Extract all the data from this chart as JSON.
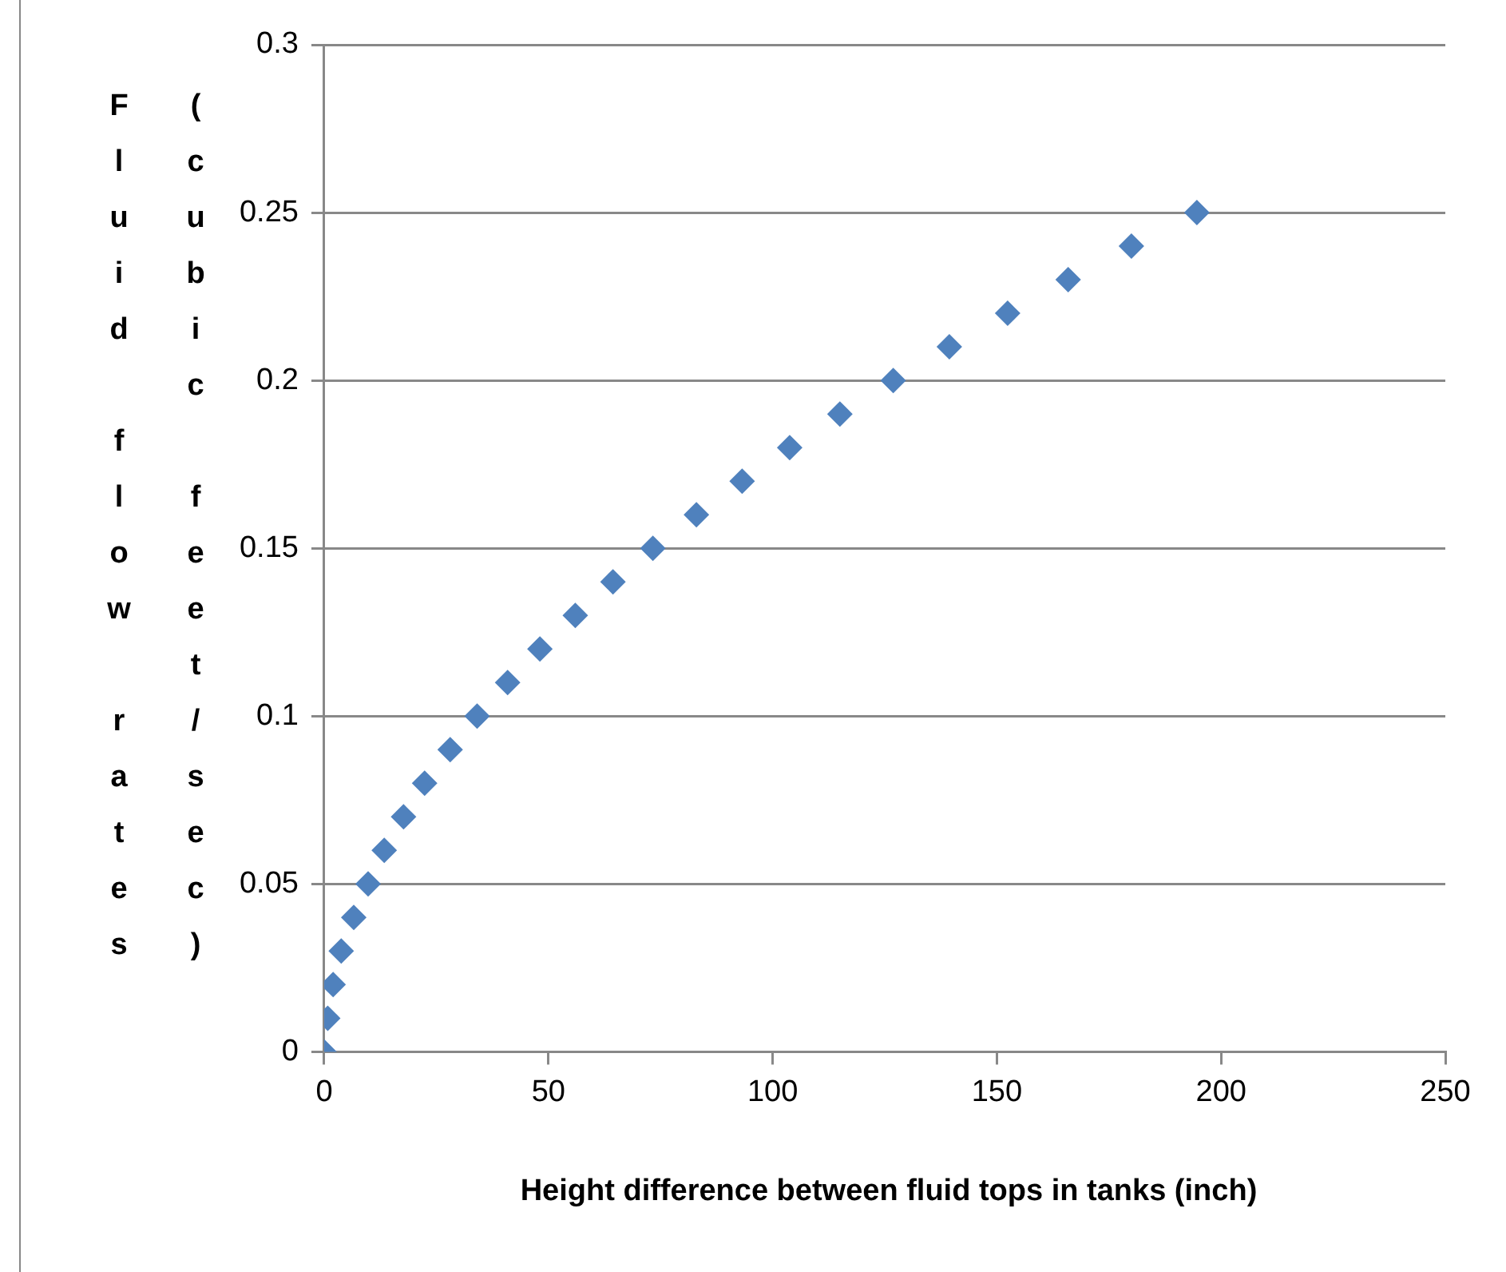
{
  "chart_data": {
    "type": "scatter",
    "xlabel": "Height difference between fluid tops in tanks (inch)",
    "ylabel": "Fluid flow rates (cubic feet/sec)",
    "x": [
      0,
      0.8,
      2.0,
      3.8,
      6.6,
      9.8,
      13.4,
      17.7,
      22.4,
      28.1,
      34.1,
      40.9,
      48.1,
      56.0,
      64.4,
      73.3,
      83.0,
      93.2,
      103.8,
      115.0,
      126.9,
      139.4,
      152.4,
      165.9,
      180.0,
      194.6
    ],
    "series": [
      {
        "color": "#4f81bd",
        "values": [
          0,
          0.01,
          0.02,
          0.03,
          0.04,
          0.05,
          0.06,
          0.07,
          0.08,
          0.09,
          0.1,
          0.11,
          0.12,
          0.13,
          0.14,
          0.15,
          0.16,
          0.17,
          0.18,
          0.19,
          0.2,
          0.21,
          0.22,
          0.23,
          0.24,
          0.25
        ]
      }
    ],
    "xlim": [
      0,
      250
    ],
    "xticks": [
      0,
      50,
      100,
      150,
      200,
      250
    ],
    "ylim": [
      0,
      0.3
    ],
    "yticks": [
      0,
      0.05,
      0.1,
      0.15,
      0.2,
      0.25,
      0.3
    ],
    "grid": "y",
    "legend": false,
    "marker": "diamond"
  }
}
